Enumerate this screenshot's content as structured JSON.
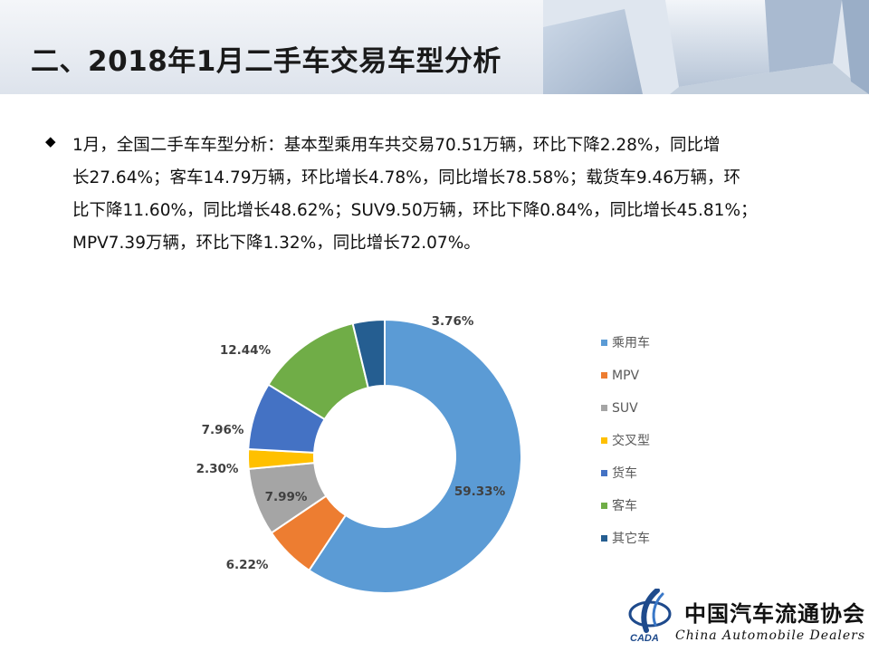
{
  "header": {
    "title": "二、2018年1月二手车交易车型分析"
  },
  "summary": {
    "bullet_icon": "diamond-bullet-icon",
    "text": "1月，全国二手车车型分析：基本型乘用车共交易70.51万辆，环比下降2.28%，同比增\n长27.64%；客车14.79万辆，环比增长4.78%，同比增长78.58%；载货车9.46万辆，环\n比下降11.60%，同比增长48.62%；SUV9.50万辆，环比下降0.84%，同比增长45.81%；\nMPV7.39万辆，环比下降1.32%，同比增长72.07%。"
  },
  "chart_data": {
    "type": "pie",
    "donut": true,
    "legend_position": "right",
    "slices": [
      {
        "name": "乘用车",
        "value": 59.33,
        "label": "59.33%",
        "color": "#5b9bd5"
      },
      {
        "name": "MPV",
        "value": 6.22,
        "label": "6.22%",
        "color": "#ed7d31"
      },
      {
        "name": "SUV",
        "value": 7.99,
        "label": "7.99%",
        "color": "#a5a5a5"
      },
      {
        "name": "交叉型",
        "value": 2.3,
        "label": "2.30%",
        "color": "#ffc000"
      },
      {
        "name": "货车",
        "value": 7.96,
        "label": "7.96%",
        "color": "#4472c4"
      },
      {
        "name": "客车",
        "value": 12.44,
        "label": "12.44%",
        "color": "#70ad47"
      },
      {
        "name": "其它车",
        "value": 3.76,
        "label": "3.76%",
        "color": "#255e91"
      }
    ]
  },
  "logo": {
    "cn": "中国汽车流通协会",
    "en": "China  Automobile Dealers",
    "mark_text": "CADA"
  }
}
